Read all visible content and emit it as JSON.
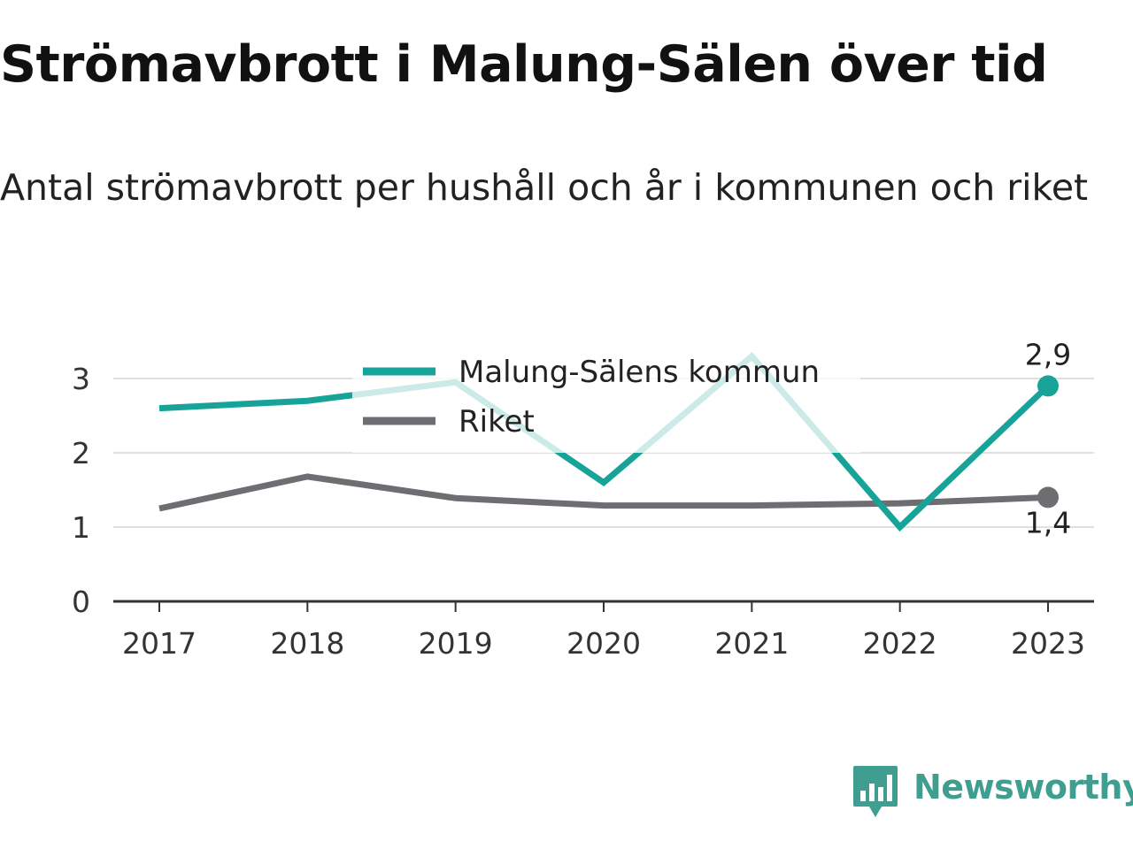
{
  "title": "Strömavbrott i Malung-Sälen över tid",
  "subtitle": "Antal strömavbrott per hushåll och år i kommunen och riket",
  "chart_data": {
    "type": "line",
    "title": "Strömavbrott i Malung-Sälen över tid",
    "subtitle": "Antal strömavbrott per hushåll och år i kommunen och riket",
    "x": [
      "2017",
      "2018",
      "2019",
      "2020",
      "2021",
      "2022",
      "2023"
    ],
    "series": [
      {
        "name": "Malung-Sälens kommun",
        "color": "#17a398",
        "values": [
          2.6,
          2.7,
          2.95,
          1.6,
          3.3,
          1.0,
          2.9
        ],
        "end_label": "2,9"
      },
      {
        "name": "Riket",
        "color": "#6e6d72",
        "values": [
          1.25,
          1.68,
          1.39,
          1.29,
          1.29,
          1.32,
          1.4
        ],
        "end_label": "1,4"
      }
    ],
    "y_ticks": [
      "0",
      "1",
      "2",
      "3"
    ],
    "ylim": [
      0,
      3.5
    ],
    "xlabel": "",
    "ylabel": "",
    "grid": true,
    "legend": "top"
  },
  "brand": {
    "name": "Newsworthy",
    "color": "#3f9e8f",
    "icon": "newsworthy-logo-icon"
  }
}
